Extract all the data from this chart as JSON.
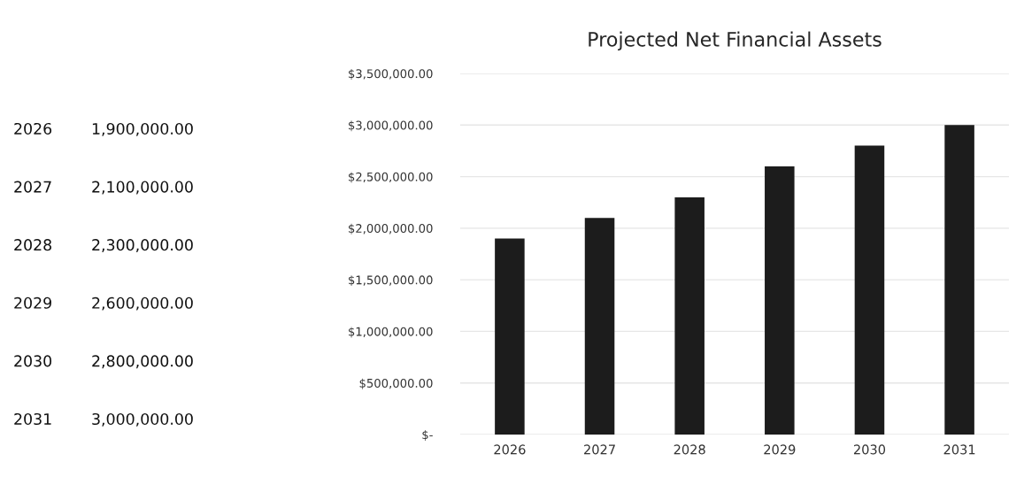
{
  "chart_data": {
    "type": "bar",
    "title": "Projected Net Financial Assets",
    "categories": [
      "2026",
      "2027",
      "2028",
      "2029",
      "2030",
      "2031"
    ],
    "values": [
      1900000,
      2100000,
      2300000,
      2600000,
      2800000,
      3000000
    ],
    "annotations": [
      "2026",
      "1,900,000.00",
      "2027",
      "2,100,000.00",
      "2028",
      "2,300,000.00",
      "2029",
      "2,600,000.00",
      "2030",
      "2,800,000.00",
      "2031",
      "3,000,000.00"
    ],
    "color": "#1c1c1c",
    "ylim": [
      0,
      3500000
    ],
    "yticks": [
      {
        "value": 0,
        "label": "$-"
      },
      {
        "value": 500000,
        "label": "$500,000.00"
      },
      {
        "value": 1000000,
        "label": "$1,000,000.00"
      },
      {
        "value": 1500000,
        "label": "$1,500,000.00"
      },
      {
        "value": 2000000,
        "label": "$2,000,000.00"
      },
      {
        "value": 2500000,
        "label": "$2,500,000.00"
      },
      {
        "value": 3000000,
        "label": "$3,000,000.00"
      },
      {
        "value": 3500000,
        "label": "$3,500,000.00"
      }
    ],
    "grid": "y",
    "legend": false
  }
}
